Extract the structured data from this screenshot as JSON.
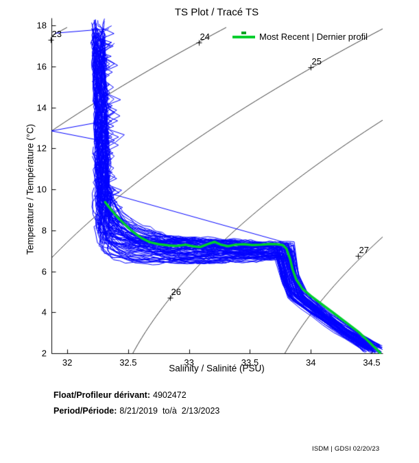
{
  "title": "TS Plot / Tracé TS",
  "legend": {
    "label": "Most Recent | Dernier profil",
    "line_color": "#00CE2E",
    "marker_color": "#00A324"
  },
  "footer": {
    "float_label": "Float/Profileur dérivant:",
    "float_value": "4902472",
    "period_label": "Period/Période:",
    "period_value": "8/21/2019  to/à  2/13/2023"
  },
  "watermark": "ISDM | GDSI 02/20/23",
  "colors": {
    "historical_blue": "#0000FF",
    "recent_green": "#00CE2E",
    "contour_black": "#000000",
    "axis_black": "#000000"
  },
  "chart_data": {
    "type": "line",
    "title": "TS Plot / Tracé TS",
    "xlabel": "Salinity / Salinité (PSU)",
    "ylabel": "Temperature / Température (°C)",
    "xlim": [
      31.87,
      34.59
    ],
    "ylim": [
      2,
      18
    ],
    "xticks": [
      32,
      32.5,
      33,
      33.5,
      34,
      34.5
    ],
    "yticks": [
      2,
      4,
      6,
      8,
      10,
      12,
      14,
      16,
      18
    ],
    "grid": false,
    "legend_position": "top-right",
    "isopycnals": {
      "levels": [
        23,
        24,
        25,
        26,
        27
      ],
      "labels": [
        {
          "level": "23",
          "S": 31.866,
          "T": 17.3
        },
        {
          "level": "24",
          "S": 33.08,
          "T": 17.16
        },
        {
          "level": "25",
          "S": 34.0,
          "T": 15.96
        },
        {
          "level": "26",
          "S": 32.845,
          "T": 4.71
        },
        {
          "level": "27",
          "S": 34.39,
          "T": 6.75
        }
      ]
    },
    "most_recent_profile": {
      "name": "Most Recent | Dernier profil",
      "points_ST": [
        [
          32.31,
          9.38
        ],
        [
          32.34,
          9.15
        ],
        [
          32.4,
          8.72
        ],
        [
          32.47,
          8.3
        ],
        [
          32.54,
          7.92
        ],
        [
          32.61,
          7.62
        ],
        [
          32.68,
          7.42
        ],
        [
          32.75,
          7.32
        ],
        [
          32.83,
          7.26
        ],
        [
          32.9,
          7.24
        ],
        [
          32.97,
          7.3
        ],
        [
          33.03,
          7.22
        ],
        [
          33.09,
          7.18
        ],
        [
          33.15,
          7.32
        ],
        [
          33.21,
          7.44
        ],
        [
          33.26,
          7.3
        ],
        [
          33.32,
          7.22
        ],
        [
          33.38,
          7.3
        ],
        [
          33.45,
          7.32
        ],
        [
          33.52,
          7.28
        ],
        [
          33.59,
          7.3
        ],
        [
          33.66,
          7.33
        ],
        [
          33.72,
          7.32
        ],
        [
          33.77,
          7.28
        ],
        [
          33.8,
          7.1
        ],
        [
          33.83,
          6.6
        ],
        [
          33.85,
          6.1
        ],
        [
          33.88,
          5.6
        ],
        [
          33.93,
          5.15
        ],
        [
          34.0,
          4.8
        ],
        [
          34.09,
          4.4
        ],
        [
          34.19,
          3.95
        ],
        [
          34.29,
          3.5
        ],
        [
          34.39,
          3.05
        ],
        [
          34.47,
          2.6
        ],
        [
          34.53,
          2.25
        ],
        [
          34.57,
          2.02
        ]
      ]
    },
    "historical_profiles": {
      "count": 80,
      "seed": 42,
      "outlier_segments_ST": [
        [
          [
            31.9,
            17.62
          ],
          [
            32.31,
            17.82
          ]
        ],
        [
          [
            31.87,
            12.85
          ],
          [
            32.33,
            13.35
          ]
        ],
        [
          [
            31.87,
            12.85
          ],
          [
            32.3,
            12.35
          ]
        ],
        [
          [
            32.29,
            9.9
          ],
          [
            33.78,
            7.42
          ]
        ],
        [
          [
            32.31,
            9.35
          ],
          [
            32.52,
            8.1
          ]
        ]
      ]
    }
  }
}
